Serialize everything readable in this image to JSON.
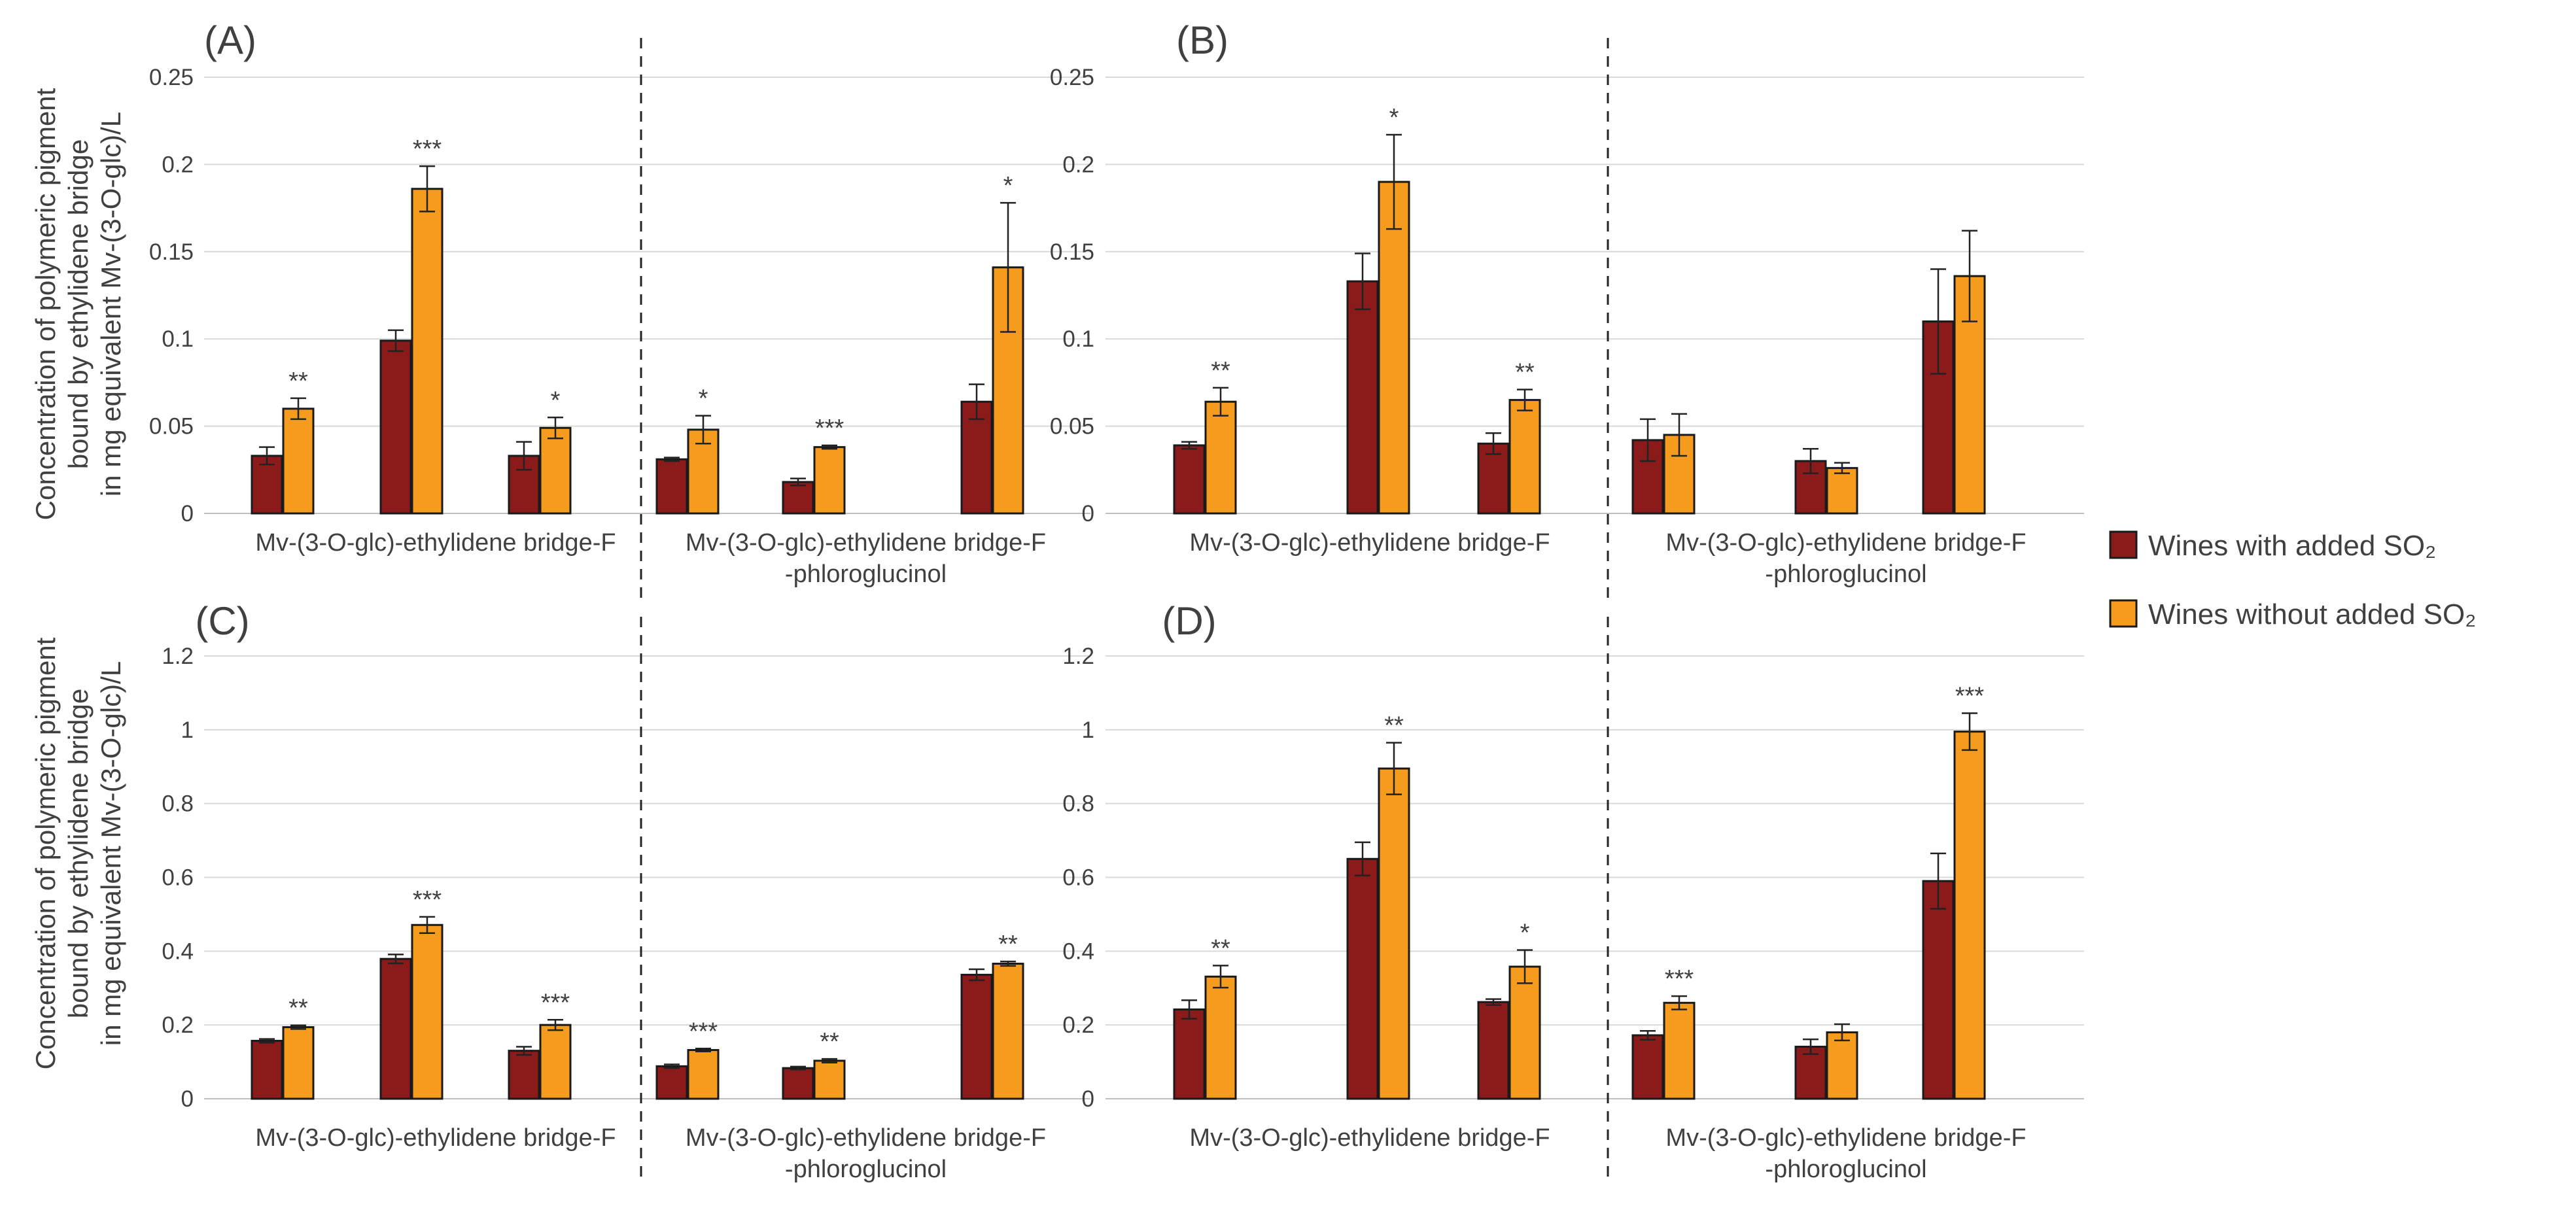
{
  "legend": {
    "with_so2": "Wines with added SO₂",
    "without_so2": "Wines without added SO₂"
  },
  "colors": {
    "with_so2": "#8b1a1a",
    "without_so2": "#f59b1e",
    "edge": "#1a1a1a",
    "grid": "#d9d9d9"
  },
  "ylabel_lines": [
    "Concentration of polymeric pigment",
    "bound by ethylidene bridge",
    "in mg equivalent Mv-(3-O-glc)/L"
  ],
  "chart_data": [
    {
      "type": "bar",
      "panel_label": "(A)",
      "ylim": [
        0,
        0.25
      ],
      "yticks": [
        "0",
        "0.05",
        "0.1",
        "0.15",
        "0.2",
        "0.25"
      ],
      "group_labels": [
        "Mv-(3-O-glc)-ethylidene bridge-F",
        "Mv-(3-O-glc)-ethylidene bridge-F",
        "-phloroglucinol"
      ],
      "pairs": [
        {
          "with": 0.033,
          "with_err": 0.005,
          "without": 0.06,
          "without_err": 0.006,
          "sig": "**"
        },
        {
          "with": 0.099,
          "with_err": 0.006,
          "without": 0.186,
          "without_err": 0.013,
          "sig": "***"
        },
        {
          "with": 0.033,
          "with_err": 0.008,
          "without": 0.049,
          "without_err": 0.006,
          "sig": "*"
        },
        {
          "with": 0.031,
          "with_err": 0.001,
          "without": 0.048,
          "without_err": 0.008,
          "sig": "*"
        },
        {
          "with": 0.018,
          "with_err": 0.002,
          "without": 0.038,
          "without_err": 0.001,
          "sig": "***"
        },
        {
          "with": 0.064,
          "with_err": 0.01,
          "without": 0.141,
          "without_err": 0.037,
          "sig": "*"
        }
      ]
    },
    {
      "type": "bar",
      "panel_label": "(B)",
      "ylim": [
        0,
        0.25
      ],
      "yticks": [
        "0",
        "0.05",
        "0.1",
        "0.15",
        "0.2",
        "0.25"
      ],
      "group_labels": [
        "Mv-(3-O-glc)-ethylidene bridge-F",
        "Mv-(3-O-glc)-ethylidene bridge-F",
        "-phloroglucinol"
      ],
      "pairs": [
        {
          "with": 0.039,
          "with_err": 0.002,
          "without": 0.064,
          "without_err": 0.008,
          "sig": "**"
        },
        {
          "with": 0.133,
          "with_err": 0.016,
          "without": 0.19,
          "without_err": 0.027,
          "sig": "*"
        },
        {
          "with": 0.04,
          "with_err": 0.006,
          "without": 0.065,
          "without_err": 0.006,
          "sig": "**"
        },
        {
          "with": 0.042,
          "with_err": 0.012,
          "without": 0.045,
          "without_err": 0.012,
          "sig": ""
        },
        {
          "with": 0.03,
          "with_err": 0.007,
          "without": 0.026,
          "without_err": 0.003,
          "sig": ""
        },
        {
          "with": 0.11,
          "with_err": 0.03,
          "without": 0.136,
          "without_err": 0.026,
          "sig": ""
        }
      ]
    },
    {
      "type": "bar",
      "panel_label": "(C)",
      "ylim": [
        0,
        1.2
      ],
      "yticks": [
        "0",
        "0.2",
        "0.4",
        "0.6",
        "0.8",
        "1",
        "1.2"
      ],
      "group_labels": [
        "Mv-(3-O-glc)-ethylidene bridge-F",
        "Mv-(3-O-glc)-ethylidene bridge-F",
        "-phloroglucinol"
      ],
      "pairs": [
        {
          "with": 0.157,
          "with_err": 0.005,
          "without": 0.194,
          "without_err": 0.005,
          "sig": "**"
        },
        {
          "with": 0.379,
          "with_err": 0.012,
          "without": 0.471,
          "without_err": 0.022,
          "sig": "***"
        },
        {
          "with": 0.13,
          "with_err": 0.011,
          "without": 0.2,
          "without_err": 0.014,
          "sig": "***"
        },
        {
          "with": 0.088,
          "with_err": 0.005,
          "without": 0.132,
          "without_err": 0.004,
          "sig": "***"
        },
        {
          "with": 0.083,
          "with_err": 0.004,
          "without": 0.103,
          "without_err": 0.005,
          "sig": "**"
        },
        {
          "with": 0.336,
          "with_err": 0.015,
          "without": 0.366,
          "without_err": 0.006,
          "sig": "**"
        }
      ]
    },
    {
      "type": "bar",
      "panel_label": "(D)",
      "ylim": [
        0,
        1.2
      ],
      "yticks": [
        "0",
        "0.2",
        "0.4",
        "0.6",
        "0.8",
        "1",
        "1.2"
      ],
      "group_labels": [
        "Mv-(3-O-glc)-ethylidene bridge-F",
        "Mv-(3-O-glc)-ethylidene bridge-F",
        "-phloroglucinol"
      ],
      "pairs": [
        {
          "with": 0.242,
          "with_err": 0.025,
          "without": 0.331,
          "without_err": 0.03,
          "sig": "**"
        },
        {
          "with": 0.65,
          "with_err": 0.045,
          "without": 0.895,
          "without_err": 0.07,
          "sig": "**"
        },
        {
          "with": 0.262,
          "with_err": 0.008,
          "without": 0.358,
          "without_err": 0.045,
          "sig": "*"
        },
        {
          "with": 0.172,
          "with_err": 0.012,
          "without": 0.26,
          "without_err": 0.018,
          "sig": "***"
        },
        {
          "with": 0.141,
          "with_err": 0.02,
          "without": 0.18,
          "without_err": 0.022,
          "sig": ""
        },
        {
          "with": 0.59,
          "with_err": 0.075,
          "without": 0.995,
          "without_err": 0.05,
          "sig": "***"
        }
      ]
    }
  ]
}
